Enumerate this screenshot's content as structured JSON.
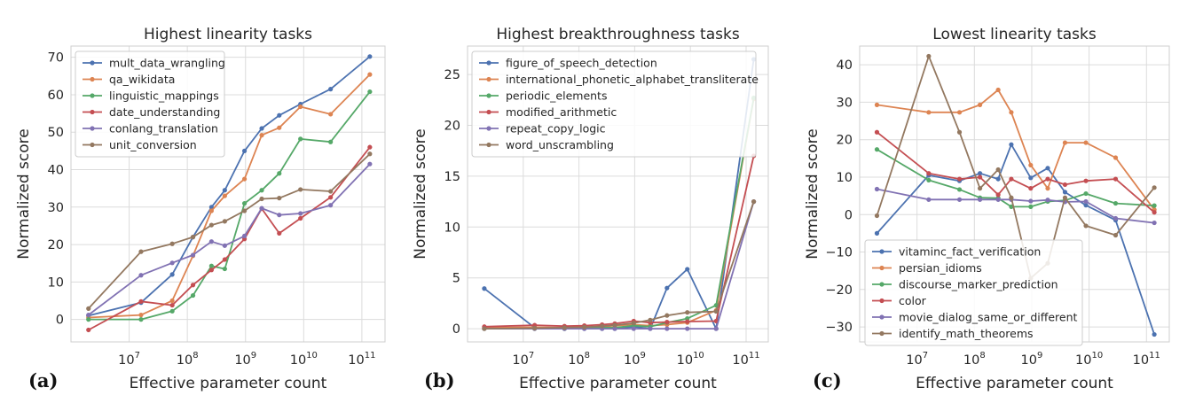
{
  "chart_data": [
    {
      "type": "line",
      "panel_label": "(a)",
      "title": "Highest linearity tasks",
      "xlabel": "Effective parameter count",
      "ylabel": "Normalized score",
      "x_scale": "log",
      "xlim": [
        1000000.0,
        250000000000.0
      ],
      "ylim": [
        -6,
        73
      ],
      "x_ticks": [
        {
          "base": "10",
          "exp": "7",
          "value": 10000000.0
        },
        {
          "base": "10",
          "exp": "8",
          "value": 100000000.0
        },
        {
          "base": "10",
          "exp": "9",
          "value": 1000000000.0
        },
        {
          "base": "10",
          "exp": "10",
          "value": 10000000000.0
        },
        {
          "base": "10",
          "exp": "11",
          "value": 100000000000.0
        }
      ],
      "y_ticks": [
        {
          "label": "0",
          "value": 0
        },
        {
          "label": "10",
          "value": 10
        },
        {
          "label": "20",
          "value": 20
        },
        {
          "label": "30",
          "value": 30
        },
        {
          "label": "40",
          "value": 40
        },
        {
          "label": "50",
          "value": 50
        },
        {
          "label": "60",
          "value": 60
        },
        {
          "label": "70",
          "value": 70
        }
      ],
      "legend_position": "top-left",
      "grid": true,
      "series": [
        {
          "name": "mult_data_wrangling",
          "color": "#4c72b0",
          "x": [
            2000000.0,
            16000000.0,
            55000000.0,
            125000000.0,
            260000000.0,
            440000000.0,
            960000000.0,
            1900000000.0,
            3800000000.0,
            8800000000.0,
            29000000000.0,
            137000000000.0
          ],
          "y": [
            1,
            4.5,
            12,
            22,
            30,
            34.5,
            45,
            51,
            54.5,
            57.5,
            61.5,
            70.2
          ]
        },
        {
          "name": "qa_wikidata",
          "color": "#dd8452",
          "x": [
            2000000.0,
            16000000.0,
            55000000.0,
            125000000.0,
            260000000.0,
            440000000.0,
            960000000.0,
            1900000000.0,
            3800000000.0,
            8800000000.0,
            29000000000.0,
            137000000000.0
          ],
          "y": [
            0.5,
            1.2,
            5,
            17,
            29,
            33,
            37.5,
            49.2,
            51.2,
            56.8,
            54.8,
            65.4
          ]
        },
        {
          "name": "linguistic_mappings",
          "color": "#55a868",
          "x": [
            2000000.0,
            16000000.0,
            55000000.0,
            125000000.0,
            260000000.0,
            440000000.0,
            960000000.0,
            1900000000.0,
            3800000000.0,
            8800000000.0,
            29000000000.0,
            137000000000.0
          ],
          "y": [
            0,
            0,
            2.2,
            6.4,
            14.3,
            13.5,
            31,
            34.5,
            39,
            48.2,
            47.4,
            60.8
          ]
        },
        {
          "name": "date_understanding",
          "color": "#c44e52",
          "x": [
            2000000.0,
            16000000.0,
            55000000.0,
            125000000.0,
            260000000.0,
            440000000.0,
            960000000.0,
            1900000000.0,
            3800000000.0,
            8800000000.0,
            29000000000.0,
            137000000000.0
          ],
          "y": [
            -2.8,
            4.8,
            3.8,
            9.2,
            13.2,
            16,
            21.5,
            29.6,
            23,
            27,
            32.6,
            46
          ]
        },
        {
          "name": "conlang_translation",
          "color": "#8172b3",
          "x": [
            2000000.0,
            16000000.0,
            55000000.0,
            125000000.0,
            260000000.0,
            440000000.0,
            960000000.0,
            1900000000.0,
            3800000000.0,
            8800000000.0,
            29000000000.0,
            137000000000.0
          ],
          "y": [
            1.2,
            11.8,
            15.1,
            17.2,
            20.8,
            19.7,
            22.3,
            29.7,
            27.9,
            28.3,
            30.5,
            41.5
          ]
        },
        {
          "name": "unit_conversion",
          "color": "#937860",
          "x": [
            2000000.0,
            16000000.0,
            55000000.0,
            125000000.0,
            260000000.0,
            440000000.0,
            960000000.0,
            1900000000.0,
            3800000000.0,
            8800000000.0,
            29000000000.0,
            137000000000.0
          ],
          "y": [
            2.9,
            18.1,
            20.2,
            22,
            25.2,
            26.2,
            29,
            32.2,
            32.4,
            34.7,
            34.2,
            44.2
          ]
        }
      ]
    },
    {
      "type": "line",
      "panel_label": "(b)",
      "title": "Highest breakthroughness tasks",
      "xlabel": "Effective parameter count",
      "ylabel": "Normalized score",
      "x_scale": "log",
      "xlim": [
        1000000.0,
        250000000000.0
      ],
      "ylim": [
        -1.3,
        27.8
      ],
      "x_ticks": [
        {
          "base": "10",
          "exp": "7",
          "value": 10000000.0
        },
        {
          "base": "10",
          "exp": "8",
          "value": 100000000.0
        },
        {
          "base": "10",
          "exp": "9",
          "value": 1000000000.0
        },
        {
          "base": "10",
          "exp": "10",
          "value": 10000000000.0
        },
        {
          "base": "10",
          "exp": "11",
          "value": 100000000000.0
        }
      ],
      "y_ticks": [
        {
          "label": "0",
          "value": 0
        },
        {
          "label": "5",
          "value": 5
        },
        {
          "label": "10",
          "value": 10
        },
        {
          "label": "15",
          "value": 15
        },
        {
          "label": "20",
          "value": 20
        },
        {
          "label": "25",
          "value": 25
        }
      ],
      "legend_position": "top-left",
      "grid": true,
      "series": [
        {
          "name": "figure_of_speech_detection",
          "color": "#4c72b0",
          "x": [
            2000000.0,
            16000000.0,
            55000000.0,
            125000000.0,
            260000000.0,
            440000000.0,
            960000000.0,
            1900000000.0,
            3800000000.0,
            8800000000.0,
            29000000000.0,
            137000000000.0
          ],
          "y": [
            3.95,
            0.1,
            0.0,
            0.0,
            0.0,
            0.0,
            0.2,
            0.0,
            4.0,
            5.85,
            0.0,
            26.5
          ]
        },
        {
          "name": "international_phonetic_alphabet_transliterate",
          "color": "#dd8452",
          "x": [
            2000000.0,
            16000000.0,
            55000000.0,
            125000000.0,
            260000000.0,
            440000000.0,
            960000000.0,
            1900000000.0,
            3800000000.0,
            8800000000.0,
            29000000000.0,
            137000000000.0
          ],
          "y": [
            0.1,
            0.15,
            0.1,
            0.2,
            0.2,
            0.3,
            0.4,
            0.3,
            0.4,
            0.6,
            1.8,
            22.6
          ]
        },
        {
          "name": "periodic_elements",
          "color": "#55a868",
          "x": [
            2000000.0,
            16000000.0,
            55000000.0,
            125000000.0,
            260000000.0,
            440000000.0,
            960000000.0,
            1900000000.0,
            3800000000.0,
            8800000000.0,
            29000000000.0,
            137000000000.0
          ],
          "y": [
            0.0,
            0.0,
            0.0,
            0.05,
            0.1,
            0.1,
            0.3,
            0.2,
            0.6,
            1.0,
            2.3,
            22.7
          ]
        },
        {
          "name": "modified_arithmetic",
          "color": "#c44e52",
          "x": [
            2000000.0,
            16000000.0,
            55000000.0,
            125000000.0,
            260000000.0,
            440000000.0,
            960000000.0,
            1900000000.0,
            3800000000.0,
            8800000000.0,
            29000000000.0,
            137000000000.0
          ],
          "y": [
            0.2,
            0.35,
            0.25,
            0.3,
            0.4,
            0.5,
            0.75,
            0.6,
            0.65,
            0.7,
            0.75,
            17.0
          ]
        },
        {
          "name": "repeat_copy_logic",
          "color": "#8172b3",
          "x": [
            2000000.0,
            16000000.0,
            55000000.0,
            125000000.0,
            260000000.0,
            440000000.0,
            960000000.0,
            1900000000.0,
            3800000000.0,
            8800000000.0,
            29000000000.0,
            137000000000.0
          ],
          "y": [
            0.0,
            0.0,
            0.0,
            0.0,
            0.0,
            0.0,
            0.0,
            0.0,
            0.0,
            0.0,
            0.0,
            12.5
          ]
        },
        {
          "name": "word_unscrambling",
          "color": "#937860",
          "x": [
            2000000.0,
            16000000.0,
            55000000.0,
            125000000.0,
            260000000.0,
            440000000.0,
            960000000.0,
            1900000000.0,
            3800000000.0,
            8800000000.0,
            29000000000.0,
            137000000000.0
          ],
          "y": [
            0.0,
            0.05,
            0.1,
            0.15,
            0.25,
            0.35,
            0.55,
            0.85,
            1.3,
            1.6,
            1.7,
            12.5
          ]
        }
      ]
    },
    {
      "type": "line",
      "panel_label": "(c)",
      "title": "Lowest linearity tasks",
      "xlabel": "Effective parameter count",
      "ylabel": "Normalized score",
      "x_scale": "log",
      "xlim": [
        1000000.0,
        250000000000.0
      ],
      "ylim": [
        -34,
        45
      ],
      "x_ticks": [
        {
          "base": "10",
          "exp": "7",
          "value": 10000000.0
        },
        {
          "base": "10",
          "exp": "8",
          "value": 100000000.0
        },
        {
          "base": "10",
          "exp": "9",
          "value": 1000000000.0
        },
        {
          "base": "10",
          "exp": "10",
          "value": 10000000000.0
        },
        {
          "base": "10",
          "exp": "11",
          "value": 100000000000.0
        }
      ],
      "y_ticks": [
        {
          "label": "−30",
          "value": -30
        },
        {
          "label": "−20",
          "value": -20
        },
        {
          "label": "−10",
          "value": -10
        },
        {
          "label": "0",
          "value": 0
        },
        {
          "label": "10",
          "value": 10
        },
        {
          "label": "20",
          "value": 20
        },
        {
          "label": "30",
          "value": 30
        },
        {
          "label": "40",
          "value": 40
        }
      ],
      "legend_position": "bottom-left",
      "grid": true,
      "series": [
        {
          "name": "vitaminc_fact_verification",
          "color": "#4c72b0",
          "x": [
            2000000.0,
            16000000.0,
            55000000.0,
            125000000.0,
            260000000.0,
            440000000.0,
            960000000.0,
            1900000000.0,
            3800000000.0,
            8800000000.0,
            29000000000.0,
            137000000000.0
          ],
          "y": [
            -5,
            10.5,
            9,
            11,
            9.5,
            18.7,
            9.8,
            12.4,
            6,
            2.5,
            -1.5,
            -32
          ]
        },
        {
          "name": "persian_idioms",
          "color": "#dd8452",
          "x": [
            2000000.0,
            16000000.0,
            55000000.0,
            125000000.0,
            260000000.0,
            440000000.0,
            960000000.0,
            1900000000.0,
            3800000000.0,
            8800000000.0,
            29000000000.0,
            137000000000.0
          ],
          "y": [
            29.3,
            27.3,
            27.3,
            29.3,
            33.3,
            27.3,
            13.2,
            7,
            19.2,
            19.2,
            15.2,
            1.3
          ]
        },
        {
          "name": "discourse_marker_prediction",
          "color": "#55a868",
          "x": [
            2000000.0,
            16000000.0,
            55000000.0,
            125000000.0,
            260000000.0,
            440000000.0,
            960000000.0,
            1900000000.0,
            3800000000.0,
            8800000000.0,
            29000000000.0,
            137000000000.0
          ],
          "y": [
            17.4,
            9.2,
            6.7,
            4.5,
            4.4,
            2.1,
            2.1,
            3.5,
            3.8,
            5.6,
            3.0,
            2.4
          ]
        },
        {
          "name": "color",
          "color": "#c44e52",
          "x": [
            2000000.0,
            16000000.0,
            55000000.0,
            125000000.0,
            260000000.0,
            440000000.0,
            960000000.0,
            1900000000.0,
            3800000000.0,
            8800000000.0,
            29000000000.0,
            137000000000.0
          ],
          "y": [
            22,
            11,
            9.5,
            10,
            5.3,
            9.5,
            7,
            9.5,
            8,
            9,
            9.5,
            0.6
          ]
        },
        {
          "name": "movie_dialog_same_or_different",
          "color": "#8172b3",
          "x": [
            2000000.0,
            16000000.0,
            55000000.0,
            125000000.0,
            260000000.0,
            440000000.0,
            960000000.0,
            1900000000.0,
            3800000000.0,
            8800000000.0,
            29000000000.0,
            137000000000.0
          ],
          "y": [
            6.8,
            4,
            4,
            4,
            4,
            4,
            3.6,
            3.9,
            3.4,
            3.5,
            -1,
            -2.2
          ]
        },
        {
          "name": "identify_math_theorems",
          "color": "#937860",
          "x": [
            2000000.0,
            16000000.0,
            55000000.0,
            125000000.0,
            260000000.0,
            440000000.0,
            960000000.0,
            1900000000.0,
            3800000000.0,
            8800000000.0,
            29000000000.0,
            137000000000.0
          ],
          "y": [
            -0.3,
            42.3,
            22,
            7,
            12,
            4.5,
            -17,
            -13,
            4.5,
            -3,
            -5.5,
            7.2
          ]
        }
      ]
    }
  ]
}
